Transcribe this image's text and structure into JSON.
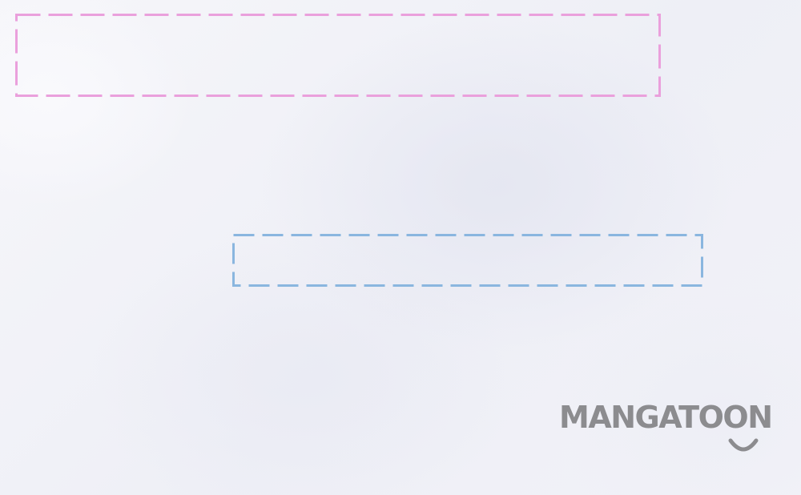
{
  "logo": {
    "text": "MANGATOON",
    "icon": "smile-icon",
    "color": "#8c8c8f"
  },
  "frames": {
    "pink_color": "#eaa0dc",
    "blue_color": "#8ab6df"
  }
}
